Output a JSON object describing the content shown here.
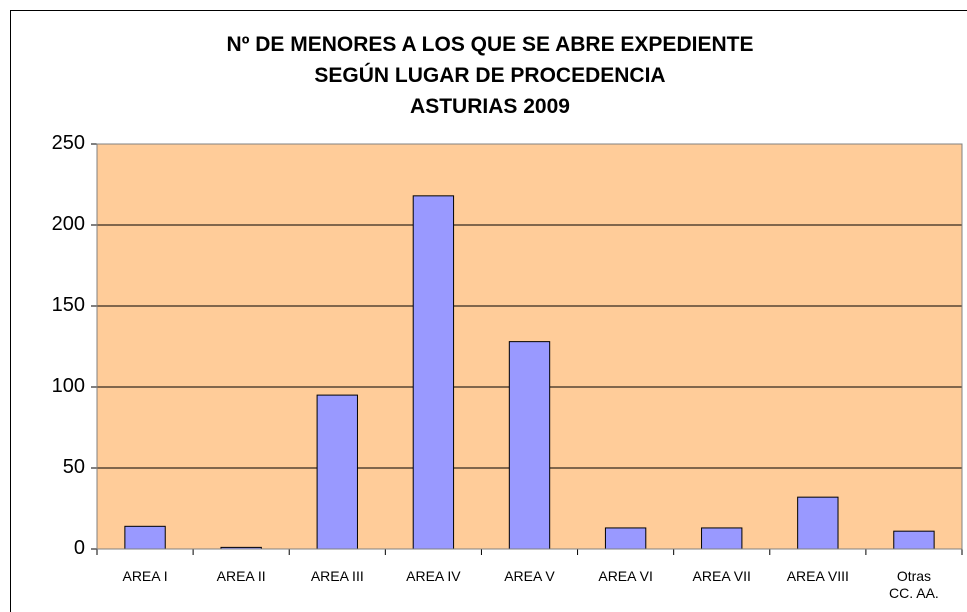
{
  "chart_data": {
    "type": "bar",
    "title": "Nº DE MENORES A LOS QUE SE ABRE EXPEDIENTE\nSEGÚN LUGAR DE PROCEDENCIA\nASTURIAS 2009",
    "categories": [
      "AREA I",
      "AREA II",
      "AREA III",
      "AREA IV",
      "AREA V",
      "AREA VI",
      "AREA VII",
      "AREA VIII",
      "Otras\nCC. AA."
    ],
    "values": [
      14,
      1,
      95,
      218,
      128,
      13,
      13,
      32,
      11
    ],
    "color": "#9999ff",
    "plot_background": "#ffcc99",
    "ylim": [
      0,
      250
    ],
    "yticks": [
      0,
      50,
      100,
      150,
      200,
      250
    ],
    "grid": true
  }
}
